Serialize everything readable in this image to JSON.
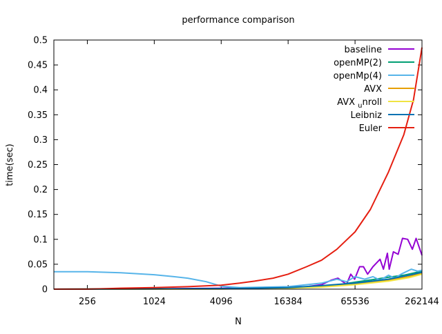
{
  "chart_data": {
    "type": "line",
    "title": "performance comparison",
    "xlabel": "N",
    "ylabel": "time(sec)",
    "x_scale": "log2",
    "xlim": [
      128,
      262144
    ],
    "ylim": [
      0,
      0.5
    ],
    "x_ticks": [
      256,
      1024,
      4096,
      16384,
      65536,
      262144
    ],
    "y_ticks": [
      0,
      0.05,
      0.1,
      0.15,
      0.2,
      0.25,
      0.3,
      0.35,
      0.4,
      0.45,
      0.5
    ],
    "grid": false,
    "legend_position": "top-right",
    "series": [
      {
        "name": "baseline",
        "color": "#9400d3",
        "points": [
          [
            128,
            0
          ],
          [
            1024,
            0.0005
          ],
          [
            4096,
            0.002
          ],
          [
            16384,
            0.004
          ],
          [
            24000,
            0.005
          ],
          [
            32768,
            0.009
          ],
          [
            40000,
            0.018
          ],
          [
            46000,
            0.022
          ],
          [
            50000,
            0.016
          ],
          [
            55000,
            0.01
          ],
          [
            60000,
            0.03
          ],
          [
            65000,
            0.02
          ],
          [
            72000,
            0.045
          ],
          [
            78000,
            0.045
          ],
          [
            85000,
            0.03
          ],
          [
            95000,
            0.045
          ],
          [
            110000,
            0.06
          ],
          [
            118000,
            0.04
          ],
          [
            128000,
            0.072
          ],
          [
            133000,
            0.04
          ],
          [
            145000,
            0.075
          ],
          [
            160000,
            0.07
          ],
          [
            175000,
            0.102
          ],
          [
            195000,
            0.1
          ],
          [
            215000,
            0.08
          ],
          [
            232000,
            0.102
          ],
          [
            262144,
            0.068
          ]
        ]
      },
      {
        "name": "openMP(2)",
        "color": "#009e73",
        "points": [
          [
            128,
            0
          ],
          [
            4096,
            0.001
          ],
          [
            16384,
            0.003
          ],
          [
            32768,
            0.006
          ],
          [
            50000,
            0.01
          ],
          [
            65536,
            0.014
          ],
          [
            100000,
            0.02
          ],
          [
            131072,
            0.024
          ],
          [
            180000,
            0.028
          ],
          [
            262144,
            0.036
          ]
        ]
      },
      {
        "name": "openMp(4)",
        "color": "#56b4e9",
        "points": [
          [
            128,
            0.035
          ],
          [
            256,
            0.035
          ],
          [
            512,
            0.033
          ],
          [
            1024,
            0.029
          ],
          [
            1536,
            0.025
          ],
          [
            2048,
            0.022
          ],
          [
            3000,
            0.015
          ],
          [
            4096,
            0.006
          ],
          [
            6000,
            0.003
          ],
          [
            16384,
            0.005
          ],
          [
            32768,
            0.012
          ],
          [
            45000,
            0.02
          ],
          [
            55000,
            0.015
          ],
          [
            65536,
            0.025
          ],
          [
            80000,
            0.02
          ],
          [
            95000,
            0.025
          ],
          [
            110000,
            0.018
          ],
          [
            131072,
            0.028
          ],
          [
            150000,
            0.022
          ],
          [
            170000,
            0.03
          ],
          [
            210000,
            0.04
          ],
          [
            240000,
            0.036
          ],
          [
            262144,
            0.038
          ]
        ]
      },
      {
        "name": "AVX",
        "color": "#e69f00",
        "points": [
          [
            128,
            0
          ],
          [
            4096,
            0.0005
          ],
          [
            16384,
            0.002
          ],
          [
            32768,
            0.005
          ],
          [
            65536,
            0.01
          ],
          [
            131072,
            0.018
          ],
          [
            200000,
            0.025
          ],
          [
            262144,
            0.032
          ]
        ]
      },
      {
        "name": "AVX_unroll",
        "color": "#f0e442",
        "points": [
          [
            128,
            0
          ],
          [
            4096,
            0.0005
          ],
          [
            16384,
            0.002
          ],
          [
            32768,
            0.004
          ],
          [
            65536,
            0.009
          ],
          [
            131072,
            0.016
          ],
          [
            200000,
            0.023
          ],
          [
            262144,
            0.03
          ]
        ]
      },
      {
        "name": "Leibniz",
        "color": "#0072b2",
        "points": [
          [
            128,
            0
          ],
          [
            4096,
            0.001
          ],
          [
            16384,
            0.003
          ],
          [
            32768,
            0.007
          ],
          [
            65536,
            0.012
          ],
          [
            131072,
            0.02
          ],
          [
            200000,
            0.028
          ],
          [
            262144,
            0.034
          ]
        ]
      },
      {
        "name": "Euler",
        "color": "#e51e10",
        "points": [
          [
            128,
            0
          ],
          [
            256,
            0
          ],
          [
            384,
            0.001
          ],
          [
            512,
            0.002
          ],
          [
            1024,
            0.003
          ],
          [
            2048,
            0.005
          ],
          [
            4096,
            0.008
          ],
          [
            6000,
            0.012
          ],
          [
            8192,
            0.016
          ],
          [
            12000,
            0.022
          ],
          [
            16384,
            0.03
          ],
          [
            24000,
            0.045
          ],
          [
            32768,
            0.058
          ],
          [
            45000,
            0.08
          ],
          [
            65536,
            0.115
          ],
          [
            90000,
            0.16
          ],
          [
            131072,
            0.235
          ],
          [
            180000,
            0.31
          ],
          [
            220000,
            0.38
          ],
          [
            262144,
            0.485
          ]
        ]
      }
    ]
  }
}
